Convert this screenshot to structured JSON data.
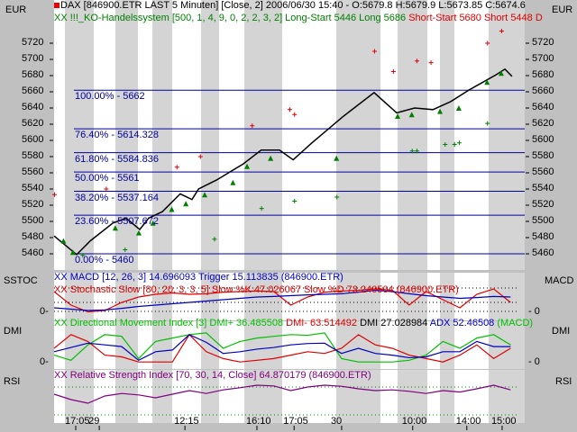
{
  "header": {
    "title": "DAX [846900.ETR LAST 5 Minuten] [Close, 2] 2006/06/30 15:40 - O:5679.8 H:5679.9 L:5673.85 C:5674.6",
    "system_label": "XX !!!_KO-Handelssystem [500, 1, 4, 9, 0, 2, 2, 3, 2] Long-Start 5446 Long 5686",
    "system_short": "Short-Start 5680 Short 5448 D",
    "currency_left": "EUR",
    "currency_right": "EUR"
  },
  "colors": {
    "price": "#000000",
    "fib": "#0000a0",
    "long": "#008000",
    "short": "#e00000",
    "macd": "#0000c0",
    "stoch": "#e00000",
    "rsi": "#800080"
  },
  "fib_levels": [
    {
      "label": "100.00% - 5662",
      "value": 5662
    },
    {
      "label": "76.40% - 5614.328",
      "value": 5614.328
    },
    {
      "label": "61.80% - 5584.836",
      "value": 5584.836
    },
    {
      "label": "50.00% - 5561",
      "value": 5561
    },
    {
      "label": "38.20% - 5537.164",
      "value": 5537.164
    },
    {
      "label": "23.60% - 5507.672",
      "value": 5507.672
    },
    {
      "label": "0.00% - 5460",
      "value": 5460
    }
  ],
  "chart_data": {
    "type": "line",
    "price_axis": {
      "ticks": [
        5720,
        5700,
        5680,
        5660,
        5640,
        5620,
        5600,
        5580,
        5560,
        5540,
        5520,
        5500,
        5480,
        5460
      ],
      "range": [
        5440,
        5744
      ]
    },
    "x_ticks": [
      "17:05",
      "29",
      "12:15",
      "16:10",
      "17:05",
      "30",
      "10:00",
      "14:00",
      "15:00"
    ],
    "x_tick_pos": [
      4.6,
      9.6,
      27.8,
      43.1,
      51,
      61.1,
      76.2,
      87.7,
      95.2
    ],
    "price": [
      [
        0,
        5482
      ],
      [
        2.3,
        5471
      ],
      [
        4.8,
        5459
      ],
      [
        7.7,
        5476
      ],
      [
        12.5,
        5498
      ],
      [
        15.3,
        5504
      ],
      [
        18.2,
        5490
      ],
      [
        20.1,
        5504
      ],
      [
        23,
        5512
      ],
      [
        26.8,
        5534
      ],
      [
        29.3,
        5527
      ],
      [
        30.7,
        5540
      ],
      [
        34.5,
        5551
      ],
      [
        40.2,
        5571
      ],
      [
        44,
        5588
      ],
      [
        47.9,
        5588
      ],
      [
        50.8,
        5576
      ],
      [
        54.6,
        5596
      ],
      [
        61.3,
        5629
      ],
      [
        68,
        5659
      ],
      [
        72.8,
        5634
      ],
      [
        76.6,
        5640
      ],
      [
        80.5,
        5638
      ],
      [
        84.3,
        5648
      ],
      [
        88.1,
        5662
      ],
      [
        93.9,
        5681
      ],
      [
        95.8,
        5688
      ],
      [
        97.3,
        5679
      ]
    ],
    "long_markers": [
      [
        2,
        5476
      ],
      [
        4,
        5462
      ],
      [
        13,
        5492
      ],
      [
        18,
        5486
      ],
      [
        21,
        5498
      ],
      [
        25,
        5515
      ],
      [
        28,
        5522
      ],
      [
        32,
        5533
      ],
      [
        38,
        5548
      ],
      [
        41,
        5568
      ],
      [
        46,
        5578
      ],
      [
        60,
        5578
      ],
      [
        73,
        5630
      ],
      [
        76,
        5632
      ],
      [
        82,
        5636
      ],
      [
        86,
        5640
      ],
      [
        92,
        5672
      ],
      [
        95,
        5683
      ]
    ],
    "short_markers": [
      [
        0,
        5533
      ],
      [
        11,
        5540
      ],
      [
        26,
        5567
      ],
      [
        31,
        5580
      ],
      [
        42,
        5618
      ],
      [
        50,
        5638
      ],
      [
        51,
        5632
      ],
      [
        68,
        5710
      ],
      [
        72,
        5685
      ],
      [
        77,
        5698
      ],
      [
        80,
        5696
      ],
      [
        92,
        5720
      ],
      [
        95,
        5735
      ]
    ],
    "long_entries": [
      [
        6,
        5458
      ],
      [
        15,
        5465
      ],
      [
        34,
        5478
      ],
      [
        44,
        5516
      ],
      [
        51,
        5525
      ],
      [
        60,
        5530
      ],
      [
        76,
        5587
      ],
      [
        77,
        5587
      ],
      [
        83,
        5595
      ],
      [
        85,
        5595
      ],
      [
        86,
        5597
      ],
      [
        92,
        5621
      ]
    ],
    "indicators": {
      "macd_label": "XX MACD [12, 26, 3] 14.696093 Trigger 15.113835 (846900.ETR)",
      "stoch_label": "XX Stochastic Slow [80, 20, 3, 3, 5] Slow %K 47.026067 Slow %D 73.240504 (846900.ETR)",
      "dmi_label_a": "XX Directional Movement Index [3] DMI+ 36.485508",
      "dmi_label_b": "DMI- 63.514492",
      "dmi_label_c": "DMI 27.028984",
      "dmi_label_d": "ADX 52.46508",
      "dmi_label_e": "(MACD)",
      "rsi_label": "XX Relative Strength Index [70, 30, 14, Close] 64.870179 (846900.ETR)",
      "panel_sstoc": "SSTOC",
      "panel_macd": "MACD",
      "panel_dmi": "DMI",
      "panel_rsi": "RSI",
      "zero_left": "0-",
      "zero_right": "- 0",
      "macd": [
        0.2,
        0.15,
        0.1,
        0.12,
        0.18,
        0.25,
        0.3,
        0.35,
        0.4,
        0.45,
        0.5,
        0.55,
        0.6,
        0.62,
        0.65,
        0.68,
        0.7,
        0.72,
        0.78,
        0.85,
        0.8,
        0.72,
        0.65,
        0.6,
        0.55,
        0.58,
        0.62,
        0.6
      ],
      "stoch": [
        0.8,
        0.3,
        0.05,
        0.1,
        0.4,
        0.6,
        0.7,
        0.75,
        0.7,
        0.72,
        0.78,
        0.8,
        0.82,
        0.8,
        0.3,
        0.6,
        0.78,
        0.82,
        0.85,
        0.9,
        0.85,
        0.3,
        0.8,
        0.5,
        0.2,
        0.7,
        0.9,
        0.4
      ],
      "rsi": [
        0.6,
        0.45,
        0.35,
        0.55,
        0.62,
        0.58,
        0.5,
        0.6,
        0.7,
        0.62,
        0.72,
        0.78,
        0.85,
        0.83,
        0.7,
        0.8,
        0.85,
        0.82,
        0.75,
        0.7,
        0.72,
        0.68,
        0.62,
        0.7,
        0.66,
        0.75,
        0.85,
        0.72
      ],
      "dmi_plus": [
        0.3,
        0.15,
        0.6,
        0.9,
        0.85,
        0.2,
        0.7,
        0.8,
        0.9,
        0.95,
        0.5,
        0.7,
        0.8,
        0.85,
        0.9,
        0.88,
        0.95,
        0.2,
        0.1,
        0.1,
        0.1,
        0.15,
        0.3,
        0.7,
        0.5,
        0.8,
        0.9,
        0.6
      ],
      "dmi_minus": [
        0.5,
        0.9,
        0.7,
        0.3,
        0.25,
        0.1,
        0.1,
        0.1,
        0.9,
        0.4,
        0.2,
        0.1,
        0.15,
        0.2,
        0.3,
        0.4,
        0.35,
        0.5,
        0.9,
        0.6,
        0.5,
        0.3,
        0.2,
        0.1,
        0.3,
        0.6,
        0.2,
        0.5
      ]
    }
  }
}
